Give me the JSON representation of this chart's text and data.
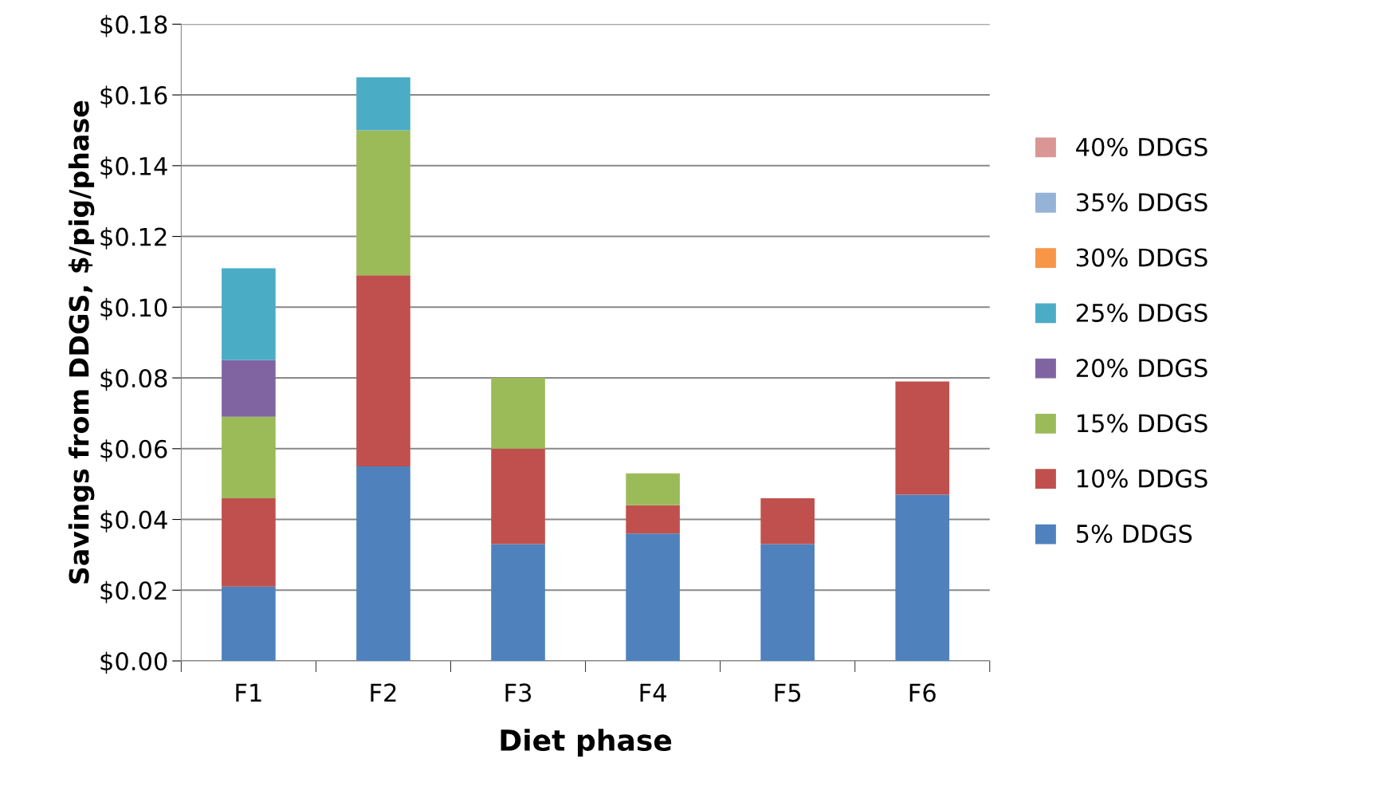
{
  "chart_data": {
    "type": "bar",
    "stacked": true,
    "xlabel": "Diet phase",
    "ylabel": "Savings from DDGS, $/pig/phase",
    "categories": [
      "F1",
      "F2",
      "F3",
      "F4",
      "F5",
      "F6"
    ],
    "series": [
      {
        "name": "5% DDGS",
        "color": "#4f81bd",
        "values": [
          0.021,
          0.055,
          0.033,
          0.036,
          0.033,
          0.047
        ]
      },
      {
        "name": "10% DDGS",
        "color": "#c0504d",
        "values": [
          0.025,
          0.054,
          0.027,
          0.008,
          0.013,
          0.032
        ]
      },
      {
        "name": "15% DDGS",
        "color": "#9bbb59",
        "values": [
          0.023,
          0.041,
          0.02,
          0.009,
          0,
          0
        ]
      },
      {
        "name": "20% DDGS",
        "color": "#8064a2",
        "values": [
          0.016,
          0,
          0,
          0,
          0,
          0
        ]
      },
      {
        "name": "25% DDGS",
        "color": "#4bacc6",
        "values": [
          0.026,
          0.015,
          0,
          0,
          0,
          0
        ]
      },
      {
        "name": "30% DDGS",
        "color": "#f79646",
        "values": [
          0,
          0,
          0,
          0,
          0,
          0
        ]
      },
      {
        "name": "35% DDGS",
        "color": "#95b3d7",
        "values": [
          0,
          0,
          0,
          0,
          0,
          0
        ]
      },
      {
        "name": "40% DDGS",
        "color": "#d99694",
        "values": [
          0,
          0,
          0,
          0,
          0,
          0
        ]
      }
    ],
    "ylim": [
      0,
      0.18
    ],
    "yticks": [
      {
        "value": 0,
        "label": "$0.00"
      },
      {
        "value": 0.02,
        "label": "$0.02"
      },
      {
        "value": 0.04,
        "label": "$0.04"
      },
      {
        "value": 0.06,
        "label": "$0.06"
      },
      {
        "value": 0.08,
        "label": "$0.08"
      },
      {
        "value": 0.1,
        "label": "$0.10"
      },
      {
        "value": 0.12,
        "label": "$0.12"
      },
      {
        "value": 0.14,
        "label": "$0.14"
      },
      {
        "value": 0.16,
        "label": "$0.16"
      },
      {
        "value": 0.18,
        "label": "$0.18"
      }
    ],
    "grid": "y",
    "legend": "right"
  }
}
